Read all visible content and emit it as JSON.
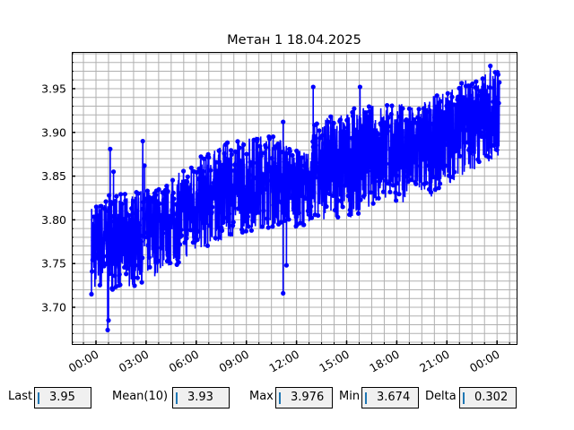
{
  "chart_data": {
    "type": "line",
    "title": "Метан 1 18.04.2025",
    "xlabel": "",
    "ylabel": "",
    "x_unit": "hours",
    "x_tick_labels": [
      "00:00",
      "03:00",
      "06:00",
      "09:00",
      "12:00",
      "15:00",
      "18:00",
      "21:00",
      "00:00"
    ],
    "x_ticks_hours": [
      0,
      3,
      6,
      9,
      12,
      15,
      18,
      21,
      24
    ],
    "y_ticks": [
      3.7,
      3.75,
      3.8,
      3.85,
      3.9,
      3.95
    ],
    "y_tick_labels": [
      "3.70",
      "3.75",
      "3.80",
      "3.85",
      "3.90",
      "3.95"
    ],
    "ylim": [
      3.658,
      3.992
    ],
    "xlim_hours": [
      -1.45,
      25.17
    ],
    "grid": true,
    "color": "#0000ff",
    "marker": "circle",
    "envelope": {
      "hours": [
        -0.27,
        1,
        2,
        3,
        4,
        5,
        6,
        7,
        8,
        9,
        10,
        11,
        12,
        12.9,
        13,
        14,
        15,
        16,
        17,
        18,
        19,
        20,
        21,
        22,
        23,
        24.15
      ],
      "low": [
        3.715,
        3.72,
        3.72,
        3.73,
        3.74,
        3.75,
        3.76,
        3.77,
        3.78,
        3.785,
        3.79,
        3.79,
        3.79,
        3.795,
        3.8,
        3.8,
        3.8,
        3.81,
        3.82,
        3.82,
        3.82,
        3.825,
        3.84,
        3.85,
        3.86,
        3.87
      ],
      "high": [
        3.82,
        3.83,
        3.83,
        3.835,
        3.84,
        3.855,
        3.87,
        3.88,
        3.89,
        3.895,
        3.9,
        3.895,
        3.88,
        3.88,
        3.91,
        3.92,
        3.925,
        3.93,
        3.935,
        3.935,
        3.93,
        3.94,
        3.95,
        3.96,
        3.965,
        3.975
      ]
    },
    "spikes": [
      {
        "hour": 0.7,
        "value": 3.674
      },
      {
        "hour": 0.75,
        "value": 3.685
      },
      {
        "hour": 0.85,
        "value": 3.881
      },
      {
        "hour": 1.05,
        "value": 3.855
      },
      {
        "hour": 2.8,
        "value": 3.89
      },
      {
        "hour": 2.9,
        "value": 3.862
      },
      {
        "hour": 11.2,
        "value": 3.716
      },
      {
        "hour": 11.2,
        "value": 3.912
      },
      {
        "hour": 11.4,
        "value": 3.748
      },
      {
        "hour": 13.0,
        "value": 3.952
      },
      {
        "hour": 15.8,
        "value": 3.952
      },
      {
        "hour": 23.6,
        "value": 3.976
      }
    ]
  },
  "stats": {
    "last_label": "Last",
    "last_value": "3.95",
    "mean_label": "Mean(10)",
    "mean_value": "3.93",
    "max_label": "Max",
    "max_value": "3.976",
    "min_label": "Min",
    "min_value": "3.674",
    "delta_label": "Delta",
    "delta_value": "0.302"
  }
}
